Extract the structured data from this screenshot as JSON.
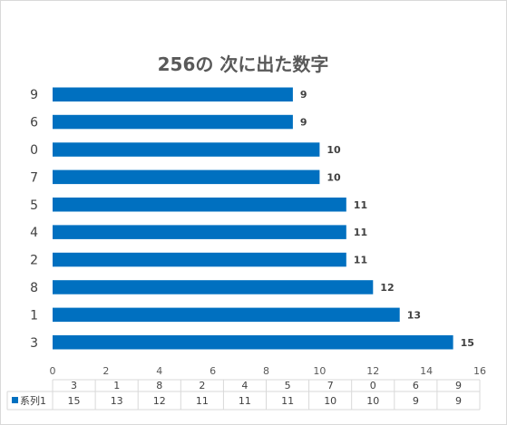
{
  "chart_data": {
    "type": "bar",
    "orientation": "horizontal",
    "title": "256の 次に出た数字",
    "categories": [
      "3",
      "1",
      "8",
      "2",
      "4",
      "5",
      "7",
      "0",
      "6",
      "9"
    ],
    "series": [
      {
        "name": "系列1",
        "values": [
          15,
          13,
          12,
          11,
          11,
          11,
          10,
          10,
          9,
          9
        ],
        "color": "#0070C0"
      }
    ],
    "xlim": [
      0,
      16
    ],
    "x_ticks": [
      0,
      2,
      4,
      6,
      8,
      10,
      12,
      14,
      16
    ],
    "data_labels": true,
    "data_table": true,
    "grid": false
  }
}
